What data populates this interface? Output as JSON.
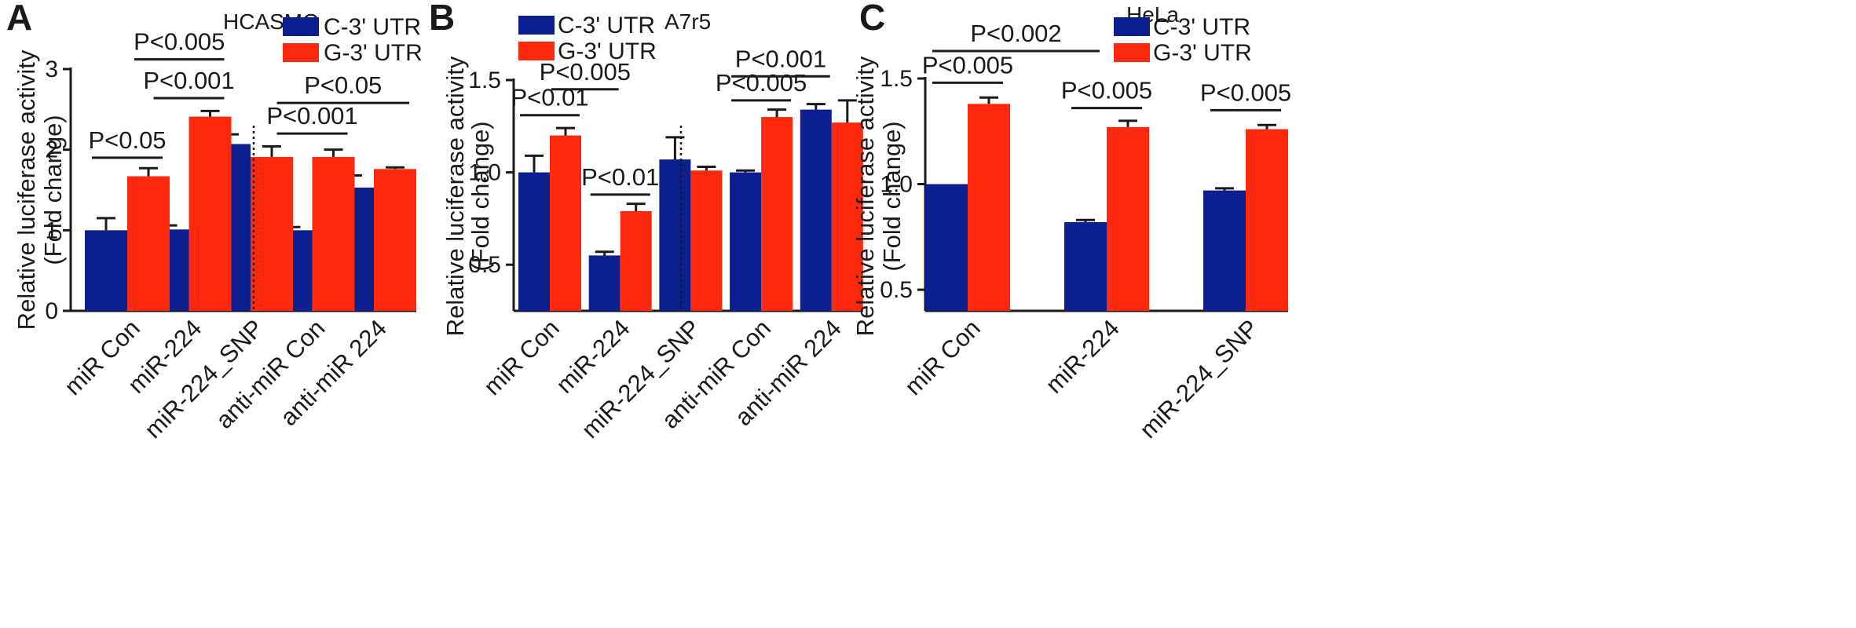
{
  "colors": {
    "c_series": "#0c1f8f",
    "g_series": "#ff2a0d",
    "axis": "#1a1a1a"
  },
  "chart_data": [
    {
      "type": "bar",
      "panel": "A",
      "cell_line": "HCASMC",
      "ylabel": [
        "Relative luciferase activity",
        "(Fold change)"
      ],
      "ylim": [
        0,
        3
      ],
      "yticks": [
        0,
        1,
        2,
        3
      ],
      "categories": [
        "miR Con",
        "miR-224",
        "miR-224_SNP",
        "anti-miR Con",
        "anti-miR 224"
      ],
      "series": [
        {
          "name": "C-3' UTR",
          "values": [
            1.0,
            1.01,
            2.07,
            1.0,
            1.53
          ],
          "errors": [
            0.15,
            0.05,
            0.12,
            0.04,
            0.15
          ]
        },
        {
          "name": "G-3' UTR",
          "values": [
            1.67,
            2.41,
            1.91,
            1.91,
            1.76
          ],
          "errors": [
            0.1,
            0.07,
            0.13,
            0.09,
            0.02
          ]
        }
      ],
      "divider_after_index": 2,
      "comparisons": [
        {
          "label": "P<0.05",
          "line_y": 1.9,
          "from": "c0",
          "to": "g0"
        },
        {
          "label": "P<0.005",
          "line_y": 3.12,
          "from": "g0",
          "to": "g1"
        },
        {
          "label": "P<0.001",
          "line_y": 2.64,
          "from": "c1",
          "to": "g1"
        },
        {
          "label": "P<0.001",
          "line_y": 2.2,
          "from": "c3",
          "to": "g3"
        },
        {
          "label": "P<0.05",
          "line_y": 2.58,
          "from": "c3",
          "to": "g4"
        }
      ],
      "legend_position": "top-right",
      "grid": false
    },
    {
      "type": "bar",
      "panel": "B",
      "cell_line": "A7r5",
      "ylabel": [
        "Relative luciferase activity",
        "(Fold change)"
      ],
      "ylim": [
        0.25,
        1.5
      ],
      "yticks": [
        0.5,
        1.0,
        1.5
      ],
      "ytick_labels": [
        "0.5",
        "1.0",
        "1.5"
      ],
      "categories": [
        "miR Con",
        "miR-224",
        "miR-224_SNP",
        "anti-miR Con",
        "anti-miR 224"
      ],
      "series": [
        {
          "name": "C-3' UTR",
          "values": [
            1.0,
            0.55,
            1.07,
            1.0,
            1.34
          ],
          "errors": [
            0.09,
            0.02,
            0.12,
            0.01,
            0.03
          ]
        },
        {
          "name": "G-3' UTR",
          "values": [
            1.2,
            0.79,
            1.01,
            1.3,
            1.27
          ],
          "errors": [
            0.04,
            0.04,
            0.02,
            0.04,
            0.12
          ]
        }
      ],
      "divider_after_index": 2,
      "comparisons": [
        {
          "label": "P<0.01",
          "line_y": 1.31,
          "from": "c0",
          "to": "g0"
        },
        {
          "label": "P<0.005",
          "line_y": 1.45,
          "from": "g0",
          "to": "c1"
        },
        {
          "label": "P<0.01",
          "line_y": 0.88,
          "from": "c1",
          "to": "g1"
        },
        {
          "label": "P<0.005",
          "line_y": 1.39,
          "from": "c3",
          "to": "g3"
        },
        {
          "label": "P<0.001",
          "line_y": 1.52,
          "from": "c3",
          "to": "c4"
        }
      ],
      "legend_position": "top-left",
      "grid": false
    },
    {
      "type": "bar",
      "panel": "C",
      "cell_line": "HeLa",
      "ylabel": [
        "Relative luciferase activity",
        "(Fold change)"
      ],
      "ylim": [
        0.4,
        1.5
      ],
      "yticks": [
        0.5,
        1.0,
        1.5
      ],
      "ytick_labels": [
        "0.5",
        "1.0",
        "1.5"
      ],
      "categories": [
        "miR Con",
        "miR-224",
        "miR-224_SNP"
      ],
      "series": [
        {
          "name": "C-3' UTR",
          "values": [
            1.0,
            0.82,
            0.97
          ],
          "errors": [
            0.0,
            0.01,
            0.01
          ]
        },
        {
          "name": "G-3' UTR",
          "values": [
            1.38,
            1.27,
            1.26
          ],
          "errors": [
            0.03,
            0.03,
            0.02
          ]
        }
      ],
      "divider_after_index": null,
      "comparisons": [
        {
          "label": "P<0.002",
          "line_y": 1.63,
          "from": "c0",
          "to": "c1"
        },
        {
          "label": "P<0.005",
          "line_y": 1.48,
          "from": "c0",
          "to": "g0"
        },
        {
          "label": "P<0.005",
          "line_y": 1.36,
          "from": "c1",
          "to": "g1"
        },
        {
          "label": "P<0.005",
          "line_y": 1.35,
          "from": "c2",
          "to": "g2"
        }
      ],
      "legend_position": "top-right",
      "grid": false
    }
  ]
}
